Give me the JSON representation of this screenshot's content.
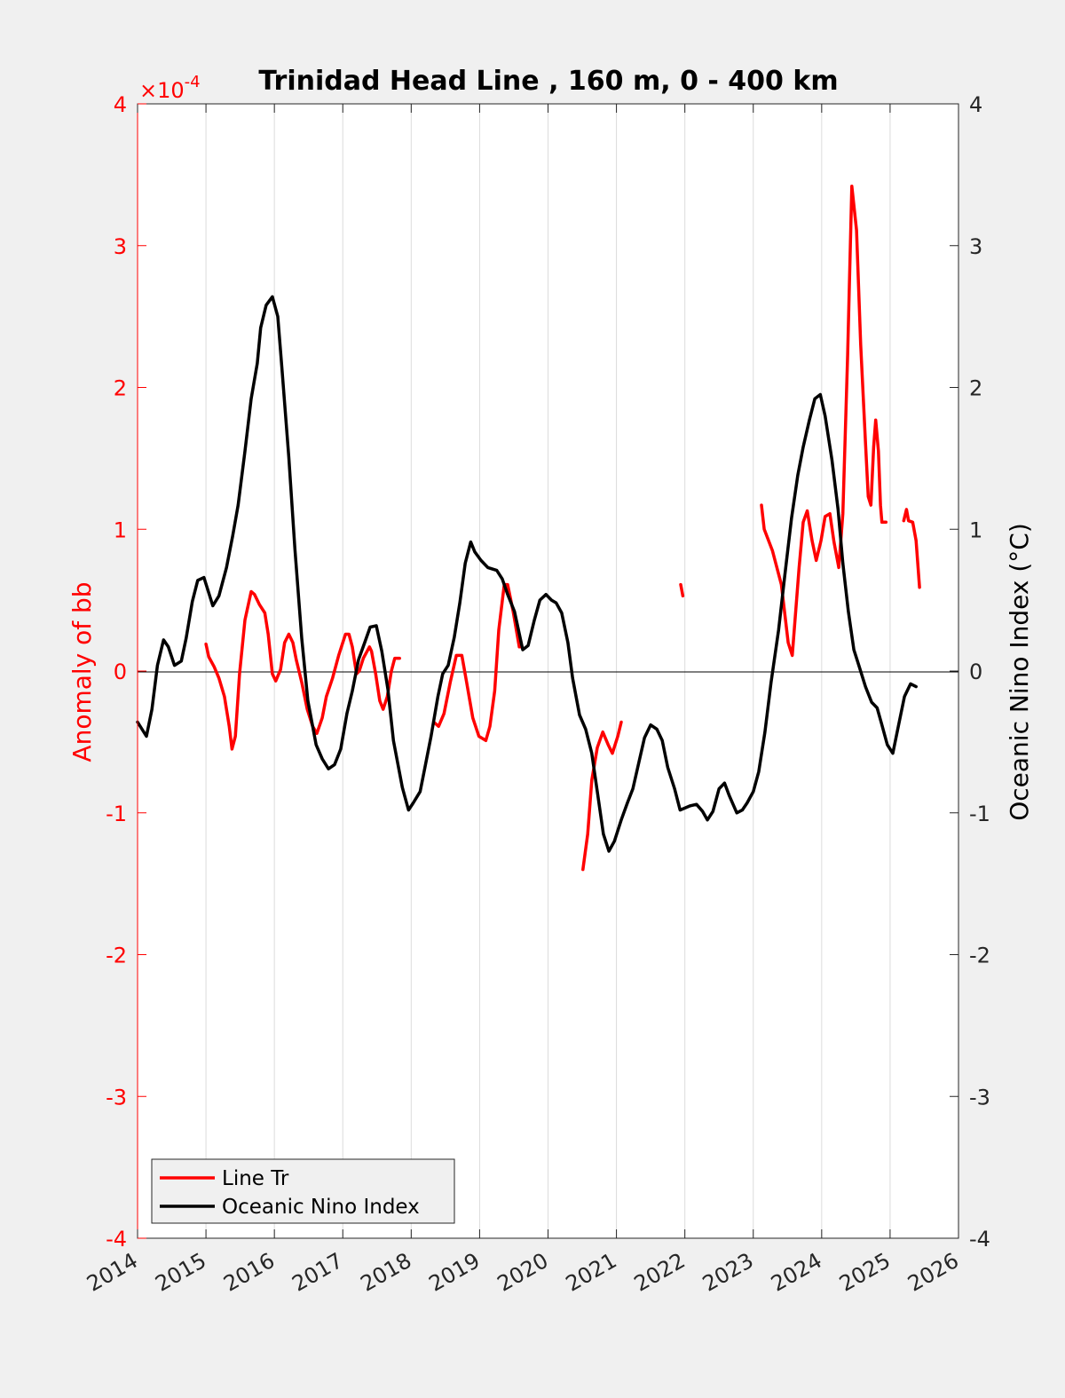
{
  "chart_data": {
    "type": "line",
    "title": "Trinidad Head Line , 160 m, 0 - 400 km",
    "xlabel": "",
    "ylabel_left": "Anomaly of bb",
    "ylabel_right": "Oceanic Nino Index (°C)",
    "left_exponent_base": "×10",
    "left_exponent": "-4",
    "xlim": [
      2014,
      2026
    ],
    "ylim_left": [
      -4,
      4
    ],
    "ylim_right": [
      -4,
      4
    ],
    "x_ticks": [
      2014,
      2015,
      2016,
      2017,
      2018,
      2019,
      2020,
      2021,
      2022,
      2023,
      2024,
      2025,
      2026
    ],
    "x_tick_labels": [
      "2014",
      "2015",
      "2016",
      "2017",
      "2018",
      "2019",
      "2020",
      "2021",
      "2022",
      "2023",
      "2024",
      "2025",
      "2026"
    ],
    "y_ticks_left": [
      -4,
      -3,
      -2,
      -1,
      0,
      1,
      2,
      3,
      4
    ],
    "y_tick_labels_left": [
      "-4",
      "-3",
      "-2",
      "-1",
      "0",
      "1",
      "2",
      "3",
      "4"
    ],
    "y_ticks_right": [
      -4,
      -3,
      -2,
      -1,
      0,
      1,
      2,
      3,
      4
    ],
    "y_tick_labels_right": [
      "-4",
      "-3",
      "-2",
      "-1",
      "0",
      "1",
      "2",
      "3",
      "4"
    ],
    "grid": "vertical",
    "zero_line": true,
    "legend_position": "bottom-left",
    "colors": {
      "line_tr": "#ff0000",
      "oni": "#000000"
    },
    "series": [
      {
        "name": "Line Tr",
        "axis": "left",
        "color": "#ff0000",
        "segments": [
          [
            [
              2015.0,
              0.19
            ],
            [
              2015.04,
              0.1
            ],
            [
              2015.12,
              0.03
            ],
            [
              2015.19,
              -0.05
            ],
            [
              2015.27,
              -0.18
            ],
            [
              2015.34,
              -0.39
            ],
            [
              2015.38,
              -0.55
            ],
            [
              2015.43,
              -0.46
            ],
            [
              2015.49,
              -0.02
            ],
            [
              2015.57,
              0.36
            ],
            [
              2015.66,
              0.56
            ],
            [
              2015.71,
              0.54
            ],
            [
              2015.78,
              0.47
            ],
            [
              2015.86,
              0.41
            ],
            [
              2015.91,
              0.26
            ],
            [
              2015.97,
              -0.02
            ],
            [
              2016.02,
              -0.07
            ],
            [
              2016.09,
              0.01
            ],
            [
              2016.15,
              0.2
            ],
            [
              2016.21,
              0.26
            ],
            [
              2016.27,
              0.2
            ],
            [
              2016.32,
              0.08
            ],
            [
              2016.4,
              -0.08
            ],
            [
              2016.48,
              -0.27
            ],
            [
              2016.56,
              -0.39
            ],
            [
              2016.62,
              -0.44
            ],
            [
              2016.7,
              -0.33
            ],
            [
              2016.76,
              -0.18
            ],
            [
              2016.85,
              -0.05
            ],
            [
              2016.94,
              0.11
            ],
            [
              2017.04,
              0.26
            ],
            [
              2017.09,
              0.26
            ],
            [
              2017.14,
              0.17
            ],
            [
              2017.2,
              -0.02
            ],
            [
              2017.24,
              0.0
            ],
            [
              2017.3,
              0.09
            ],
            [
              2017.39,
              0.17
            ],
            [
              2017.42,
              0.14
            ],
            [
              2017.48,
              -0.02
            ],
            [
              2017.54,
              -0.21
            ],
            [
              2017.59,
              -0.27
            ],
            [
              2017.65,
              -0.18
            ],
            [
              2017.71,
              0.0
            ],
            [
              2017.76,
              0.09
            ],
            [
              2017.83,
              0.09
            ]
          ],
          [
            [
              2018.33,
              -0.36
            ],
            [
              2018.4,
              -0.39
            ],
            [
              2018.48,
              -0.3
            ],
            [
              2018.57,
              -0.08
            ],
            [
              2018.66,
              0.11
            ],
            [
              2018.74,
              0.11
            ],
            [
              2018.81,
              -0.08
            ],
            [
              2018.9,
              -0.33
            ],
            [
              2018.99,
              -0.46
            ],
            [
              2019.09,
              -0.49
            ],
            [
              2019.15,
              -0.39
            ],
            [
              2019.22,
              -0.14
            ],
            [
              2019.28,
              0.29
            ],
            [
              2019.36,
              0.61
            ],
            [
              2019.41,
              0.61
            ],
            [
              2019.49,
              0.42
            ],
            [
              2019.58,
              0.17
            ],
            [
              2019.6,
              0.17
            ]
          ],
          [
            [
              2020.51,
              -1.4
            ],
            [
              2020.58,
              -1.15
            ],
            [
              2020.64,
              -0.77
            ],
            [
              2020.72,
              -0.54
            ],
            [
              2020.8,
              -0.43
            ],
            [
              2020.88,
              -0.52
            ],
            [
              2020.94,
              -0.58
            ],
            [
              2021.02,
              -0.46
            ],
            [
              2021.07,
              -0.36
            ]
          ],
          [
            [
              2021.94,
              0.61
            ],
            [
              2021.97,
              0.53
            ]
          ],
          [
            [
              2023.12,
              1.17
            ],
            [
              2023.16,
              1.0
            ],
            [
              2023.28,
              0.85
            ],
            [
              2023.41,
              0.61
            ],
            [
              2023.51,
              0.2
            ],
            [
              2023.57,
              0.11
            ],
            [
              2023.67,
              0.73
            ],
            [
              2023.73,
              1.05
            ],
            [
              2023.79,
              1.13
            ],
            [
              2023.86,
              0.92
            ],
            [
              2023.92,
              0.78
            ],
            [
              2023.99,
              0.92
            ],
            [
              2024.05,
              1.09
            ],
            [
              2024.12,
              1.11
            ],
            [
              2024.18,
              0.91
            ],
            [
              2024.25,
              0.73
            ],
            [
              2024.31,
              1.11
            ],
            [
              2024.38,
              2.23
            ],
            [
              2024.44,
              3.42
            ],
            [
              2024.51,
              3.11
            ],
            [
              2024.57,
              2.3
            ],
            [
              2024.64,
              1.61
            ],
            [
              2024.68,
              1.23
            ],
            [
              2024.72,
              1.17
            ],
            [
              2024.76,
              1.58
            ],
            [
              2024.79,
              1.77
            ],
            [
              2024.83,
              1.55
            ],
            [
              2024.86,
              1.17
            ],
            [
              2024.88,
              1.05
            ],
            [
              2024.94,
              1.05
            ]
          ],
          [
            [
              2025.2,
              1.06
            ],
            [
              2025.24,
              1.14
            ],
            [
              2025.27,
              1.06
            ],
            [
              2025.33,
              1.05
            ],
            [
              2025.38,
              0.92
            ],
            [
              2025.43,
              0.59
            ]
          ]
        ]
      },
      {
        "name": "Oceanic Nino Index",
        "axis": "right",
        "color": "#000000",
        "segments": [
          [
            [
              2014.0,
              -0.36
            ],
            [
              2014.13,
              -0.46
            ],
            [
              2014.21,
              -0.27
            ],
            [
              2014.29,
              0.04
            ],
            [
              2014.38,
              0.22
            ],
            [
              2014.45,
              0.17
            ],
            [
              2014.54,
              0.04
            ],
            [
              2014.64,
              0.07
            ],
            [
              2014.71,
              0.23
            ],
            [
              2014.8,
              0.49
            ],
            [
              2014.88,
              0.64
            ],
            [
              2014.97,
              0.66
            ],
            [
              2015.1,
              0.46
            ],
            [
              2015.19,
              0.53
            ],
            [
              2015.3,
              0.73
            ],
            [
              2015.39,
              0.95
            ],
            [
              2015.47,
              1.17
            ],
            [
              2015.57,
              1.55
            ],
            [
              2015.66,
              1.92
            ],
            [
              2015.75,
              2.17
            ],
            [
              2015.8,
              2.42
            ],
            [
              2015.88,
              2.58
            ],
            [
              2015.97,
              2.64
            ],
            [
              2016.05,
              2.5
            ],
            [
              2016.11,
              2.14
            ],
            [
              2016.21,
              1.51
            ],
            [
              2016.3,
              0.86
            ],
            [
              2016.4,
              0.23
            ],
            [
              2016.49,
              -0.21
            ],
            [
              2016.61,
              -0.52
            ],
            [
              2016.7,
              -0.62
            ],
            [
              2016.79,
              -0.69
            ],
            [
              2016.88,
              -0.66
            ],
            [
              2016.97,
              -0.55
            ],
            [
              2017.06,
              -0.3
            ],
            [
              2017.14,
              -0.14
            ],
            [
              2017.23,
              0.08
            ],
            [
              2017.32,
              0.2
            ],
            [
              2017.4,
              0.31
            ],
            [
              2017.49,
              0.32
            ],
            [
              2017.57,
              0.14
            ],
            [
              2017.66,
              -0.13
            ],
            [
              2017.74,
              -0.49
            ],
            [
              2017.87,
              -0.82
            ],
            [
              2017.96,
              -0.98
            ],
            [
              2018.03,
              -0.93
            ],
            [
              2018.13,
              -0.85
            ],
            [
              2018.2,
              -0.68
            ],
            [
              2018.29,
              -0.46
            ],
            [
              2018.39,
              -0.18
            ],
            [
              2018.46,
              -0.02
            ],
            [
              2018.54,
              0.04
            ],
            [
              2018.63,
              0.24
            ],
            [
              2018.71,
              0.48
            ],
            [
              2018.79,
              0.76
            ],
            [
              2018.87,
              0.91
            ],
            [
              2018.93,
              0.84
            ],
            [
              2019.02,
              0.78
            ],
            [
              2019.12,
              0.73
            ],
            [
              2019.25,
              0.71
            ],
            [
              2019.33,
              0.65
            ],
            [
              2019.41,
              0.54
            ],
            [
              2019.51,
              0.42
            ],
            [
              2019.63,
              0.15
            ],
            [
              2019.71,
              0.18
            ],
            [
              2019.8,
              0.36
            ],
            [
              2019.88,
              0.5
            ],
            [
              2019.97,
              0.54
            ],
            [
              2020.05,
              0.5
            ],
            [
              2020.12,
              0.48
            ],
            [
              2020.2,
              0.41
            ],
            [
              2020.29,
              0.2
            ],
            [
              2020.36,
              -0.05
            ],
            [
              2020.46,
              -0.31
            ],
            [
              2020.55,
              -0.41
            ],
            [
              2020.64,
              -0.58
            ],
            [
              2020.72,
              -0.85
            ],
            [
              2020.81,
              -1.15
            ],
            [
              2020.89,
              -1.27
            ],
            [
              2020.97,
              -1.2
            ],
            [
              2021.07,
              -1.05
            ],
            [
              2021.16,
              -0.93
            ],
            [
              2021.24,
              -0.83
            ],
            [
              2021.33,
              -0.64
            ],
            [
              2021.41,
              -0.47
            ],
            [
              2021.5,
              -0.38
            ],
            [
              2021.59,
              -0.41
            ],
            [
              2021.67,
              -0.49
            ],
            [
              2021.75,
              -0.68
            ],
            [
              2021.85,
              -0.83
            ],
            [
              2021.93,
              -0.98
            ],
            [
              2022.08,
              -0.95
            ],
            [
              2022.17,
              -0.94
            ],
            [
              2022.26,
              -0.99
            ],
            [
              2022.33,
              -1.05
            ],
            [
              2022.41,
              -0.99
            ],
            [
              2022.5,
              -0.83
            ],
            [
              2022.58,
              -0.79
            ],
            [
              2022.65,
              -0.88
            ],
            [
              2022.76,
              -1.0
            ],
            [
              2022.84,
              -0.98
            ],
            [
              2022.91,
              -0.93
            ],
            [
              2023.0,
              -0.85
            ],
            [
              2023.08,
              -0.71
            ],
            [
              2023.17,
              -0.43
            ],
            [
              2023.26,
              -0.08
            ],
            [
              2023.37,
              0.29
            ],
            [
              2023.46,
              0.67
            ],
            [
              2023.56,
              1.08
            ],
            [
              2023.65,
              1.38
            ],
            [
              2023.73,
              1.58
            ],
            [
              2023.82,
              1.77
            ],
            [
              2023.9,
              1.92
            ],
            [
              2023.98,
              1.95
            ],
            [
              2024.05,
              1.8
            ],
            [
              2024.15,
              1.49
            ],
            [
              2024.24,
              1.14
            ],
            [
              2024.31,
              0.76
            ],
            [
              2024.39,
              0.42
            ],
            [
              2024.47,
              0.15
            ],
            [
              2024.55,
              0.03
            ],
            [
              2024.64,
              -0.11
            ],
            [
              2024.73,
              -0.22
            ],
            [
              2024.81,
              -0.26
            ],
            [
              2024.88,
              -0.38
            ],
            [
              2024.96,
              -0.52
            ],
            [
              2025.04,
              -0.58
            ],
            [
              2025.12,
              -0.39
            ],
            [
              2025.21,
              -0.18
            ],
            [
              2025.3,
              -0.09
            ],
            [
              2025.38,
              -0.11
            ]
          ]
        ]
      }
    ]
  }
}
